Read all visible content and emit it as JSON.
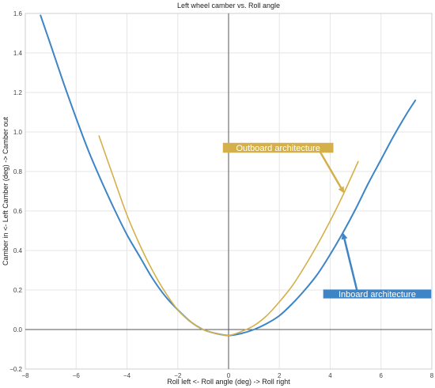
{
  "chart_data": {
    "type": "line",
    "title": "Left wheel camber vs. Roll angle",
    "xlabel": "Roll left <- Roll angle (deg) -> Roll right",
    "ylabel": "Camber in <- Left Camber (deg) -> Camber out",
    "xlim": [
      -8,
      8
    ],
    "ylim": [
      -0.2,
      1.6
    ],
    "x_ticks": [
      -8,
      -6,
      -4,
      -2,
      0,
      2,
      4,
      6,
      8
    ],
    "y_ticks": [
      -0.2,
      0.0,
      0.2,
      0.4,
      0.6,
      0.8,
      1.0,
      1.2,
      1.4,
      1.6
    ],
    "x_tick_labels": [
      "−8",
      "−6",
      "−4",
      "−2",
      "0",
      "2",
      "4",
      "6",
      "8"
    ],
    "y_tick_labels": [
      "−0.2",
      "0.0",
      "0.2",
      "0.4",
      "0.6",
      "0.8",
      "1.0",
      "1.2",
      "1.4",
      "1.6"
    ],
    "grid": true,
    "legend": "none",
    "series": [
      {
        "color": "#3d85c6",
        "points": [
          [
            -7.4,
            1.59
          ],
          [
            -7.0,
            1.44
          ],
          [
            -6.5,
            1.25
          ],
          [
            -6.0,
            1.07
          ],
          [
            -5.5,
            0.9
          ],
          [
            -5.0,
            0.75
          ],
          [
            -4.5,
            0.61
          ],
          [
            -4.0,
            0.48
          ],
          [
            -3.5,
            0.37
          ],
          [
            -3.0,
            0.26
          ],
          [
            -2.5,
            0.17
          ],
          [
            -2.0,
            0.1
          ],
          [
            -1.5,
            0.04
          ],
          [
            -1.0,
            0.0
          ],
          [
            -0.5,
            -0.02
          ],
          [
            0.0,
            -0.03
          ],
          [
            0.5,
            -0.02
          ],
          [
            1.0,
            0.0
          ],
          [
            1.5,
            0.03
          ],
          [
            2.0,
            0.07
          ],
          [
            2.5,
            0.13
          ],
          [
            3.0,
            0.2
          ],
          [
            3.5,
            0.28
          ],
          [
            4.0,
            0.38
          ],
          [
            4.5,
            0.49
          ],
          [
            5.0,
            0.61
          ],
          [
            5.5,
            0.74
          ],
          [
            6.0,
            0.86
          ],
          [
            6.5,
            0.98
          ],
          [
            7.0,
            1.09
          ],
          [
            7.35,
            1.16
          ]
        ]
      },
      {
        "color": "#d4b04a",
        "points": [
          [
            -5.1,
            0.98
          ],
          [
            -4.5,
            0.76
          ],
          [
            -4.0,
            0.58
          ],
          [
            -3.5,
            0.43
          ],
          [
            -3.0,
            0.3
          ],
          [
            -2.5,
            0.19
          ],
          [
            -2.0,
            0.1
          ],
          [
            -1.5,
            0.04
          ],
          [
            -1.0,
            0.0
          ],
          [
            -0.5,
            -0.02
          ],
          [
            0.0,
            -0.03
          ],
          [
            0.5,
            -0.01
          ],
          [
            1.0,
            0.02
          ],
          [
            1.5,
            0.07
          ],
          [
            2.0,
            0.14
          ],
          [
            2.5,
            0.22
          ],
          [
            3.0,
            0.32
          ],
          [
            3.5,
            0.43
          ],
          [
            4.0,
            0.55
          ],
          [
            4.5,
            0.68
          ],
          [
            5.1,
            0.85
          ]
        ]
      }
    ],
    "annotations": [
      {
        "text": "Outboard architecture",
        "box_color": "#d4b04a",
        "text_color": "#ffffff",
        "box_center": [
          1.95,
          0.92
        ],
        "box_size": [
          4.35,
          0.05
        ],
        "arrow_from": [
          3.6,
          0.9
        ],
        "arrow_to": [
          4.55,
          0.69
        ]
      },
      {
        "text": "Inboard architecture",
        "box_color": "#3d85c6",
        "text_color": "#ffffff",
        "box_center": [
          5.85,
          0.18
        ],
        "box_size": [
          4.25,
          0.045
        ],
        "arrow_from": [
          5.05,
          0.2
        ],
        "arrow_to": [
          4.5,
          0.49
        ]
      }
    ]
  }
}
